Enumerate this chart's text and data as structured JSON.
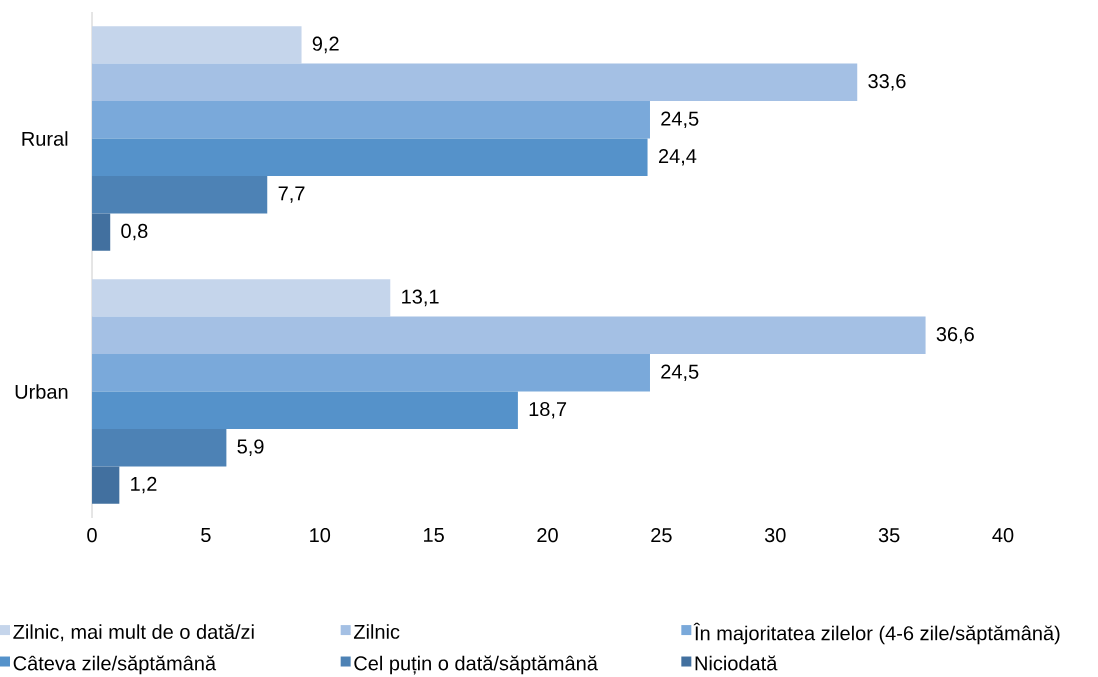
{
  "chart_data": {
    "type": "bar",
    "orientation": "horizontal",
    "categories": [
      "Rural",
      "Urban"
    ],
    "series": [
      {
        "name": "Zilnic, mai mult de o dată/zi",
        "color": "#c5d5eb",
        "values": [
          9.2,
          13.1
        ],
        "value_labels": [
          "9,2",
          "13,1"
        ]
      },
      {
        "name": "Zilnic",
        "color": "#a4c0e4",
        "values": [
          33.6,
          36.6
        ],
        "value_labels": [
          "33,6",
          "36,6"
        ]
      },
      {
        "name": "În majoritatea zilelor (4-6 zile/săptămână)",
        "color": "#7aa9da",
        "values": [
          24.5,
          24.5
        ],
        "value_labels": [
          "24,5",
          "24,5"
        ]
      },
      {
        "name": "Câteva zile/săptămână",
        "color": "#5592ca",
        "values": [
          24.4,
          18.7
        ],
        "value_labels": [
          "24,4",
          "18,7"
        ]
      },
      {
        "name": "Cel puțin o dată/săptămână",
        "color": "#4d82b5",
        "values": [
          7.7,
          5.9
        ],
        "value_labels": [
          "7,7",
          "5,9"
        ]
      },
      {
        "name": "Niciodată",
        "color": "#42709f",
        "values": [
          0.8,
          1.2
        ],
        "value_labels": [
          "0,8",
          "1,2"
        ]
      }
    ],
    "xlim": [
      0,
      40
    ],
    "xticks": [
      0,
      5,
      10,
      15,
      20,
      25,
      30,
      35,
      40
    ],
    "legend": "bottom"
  }
}
